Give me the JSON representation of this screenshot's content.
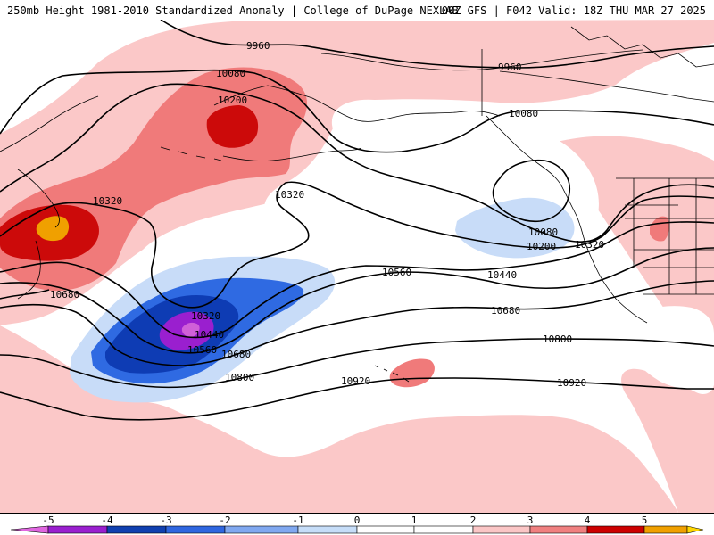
{
  "header": {
    "title": "250mb Height 1981-2010 Standardized Anomaly | College of DuPage NEXLAB",
    "run_info": "00Z GFS | F042 Valid: 18Z THU MAR 27 2025"
  },
  "contours": {
    "labels": [
      "9960",
      "9960",
      "10080",
      "10080",
      "10080",
      "10200",
      "10200",
      "10320",
      "10320",
      "10320",
      "10320",
      "10440",
      "10440",
      "10560",
      "10560",
      "10680",
      "10680",
      "10680",
      "10800",
      "10800",
      "10920",
      "10920"
    ]
  },
  "colorbar": {
    "ticks": [
      "-5",
      "-4",
      "-3",
      "-2",
      "-1",
      "0",
      "1",
      "2",
      "3",
      "4",
      "5"
    ],
    "colors": [
      "#e066e0",
      "#9a1fcf",
      "#1040b0",
      "#2f66e0",
      "#80a8f0",
      "#c6ddf8",
      "#ffffff",
      "#ffffff",
      "#fbc6c6",
      "#f08080",
      "#cc0000",
      "#f0a000",
      "#ffd700"
    ]
  },
  "anomaly_colors": {
    "pos1": "#fbc8c8",
    "pos2": "#f07a7a",
    "pos3": "#cc0a0a",
    "pos4": "#f0a000",
    "neg1": "#c8dcf8",
    "neg2": "#2f6ae2",
    "neg3": "#0e3cb4",
    "neg4": "#9a1fcf",
    "neg5": "#d060d8"
  }
}
